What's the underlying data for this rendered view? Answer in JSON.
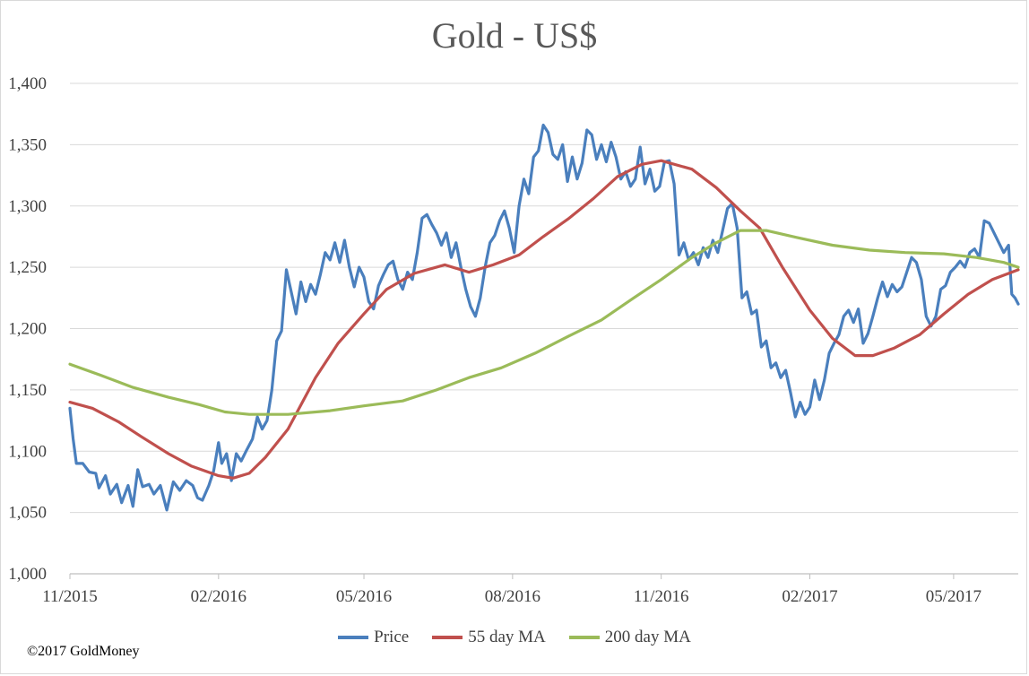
{
  "title": "Gold - US$",
  "copyright": "©2017 GoldMoney",
  "colors": {
    "price": "#4a7fbd",
    "ma55": "#c0504d",
    "ma200": "#9bbb59",
    "grid": "#d9d9d9",
    "axis": "#bfbfbf"
  },
  "chart_data": {
    "type": "line",
    "title": "Gold - US$",
    "xlabel": "",
    "ylabel": "",
    "ylim": [
      1000,
      1400
    ],
    "xlim": [
      "2015-11-01",
      "2017-06-10"
    ],
    "yticks": [
      "1,000",
      "1,050",
      "1,100",
      "1,150",
      "1,200",
      "1,250",
      "1,300",
      "1,350",
      "1,400"
    ],
    "xticks": [
      {
        "label": "11/2015",
        "date": "2015-11-01"
      },
      {
        "label": "02/2016",
        "date": "2016-02-01"
      },
      {
        "label": "05/2016",
        "date": "2016-05-01"
      },
      {
        "label": "08/2016",
        "date": "2016-08-01"
      },
      {
        "label": "11/2016",
        "date": "2016-11-01"
      },
      {
        "label": "02/2017",
        "date": "2017-02-01"
      },
      {
        "label": "05/2017",
        "date": "2017-05-01"
      }
    ],
    "grid": true,
    "legend_position": "bottom",
    "series": [
      {
        "name": "Price",
        "color": "#4a7fbd",
        "points": [
          [
            "2015-11-01",
            1135
          ],
          [
            "2015-11-03",
            1110
          ],
          [
            "2015-11-05",
            1090
          ],
          [
            "2015-11-09",
            1090
          ],
          [
            "2015-11-13",
            1083
          ],
          [
            "2015-11-17",
            1082
          ],
          [
            "2015-11-19",
            1070
          ],
          [
            "2015-11-23",
            1080
          ],
          [
            "2015-11-26",
            1065
          ],
          [
            "2015-11-30",
            1073
          ],
          [
            "2015-12-03",
            1058
          ],
          [
            "2015-12-07",
            1072
          ],
          [
            "2015-12-10",
            1055
          ],
          [
            "2015-12-13",
            1085
          ],
          [
            "2015-12-16",
            1071
          ],
          [
            "2015-12-20",
            1073
          ],
          [
            "2015-12-23",
            1065
          ],
          [
            "2015-12-27",
            1072
          ],
          [
            "2015-12-31",
            1052
          ],
          [
            "2016-01-04",
            1075
          ],
          [
            "2016-01-08",
            1068
          ],
          [
            "2016-01-12",
            1076
          ],
          [
            "2016-01-16",
            1072
          ],
          [
            "2016-01-19",
            1062
          ],
          [
            "2016-01-22",
            1060
          ],
          [
            "2016-01-26",
            1072
          ],
          [
            "2016-01-29",
            1084
          ],
          [
            "2016-02-01",
            1107
          ],
          [
            "2016-02-03",
            1090
          ],
          [
            "2016-02-06",
            1098
          ],
          [
            "2016-02-09",
            1076
          ],
          [
            "2016-02-12",
            1098
          ],
          [
            "2016-02-15",
            1092
          ],
          [
            "2016-02-18",
            1100
          ],
          [
            "2016-02-22",
            1110
          ],
          [
            "2016-02-25",
            1128
          ],
          [
            "2016-02-28",
            1118
          ],
          [
            "2016-03-02",
            1125
          ],
          [
            "2016-03-05",
            1150
          ],
          [
            "2016-03-08",
            1190
          ],
          [
            "2016-03-11",
            1198
          ],
          [
            "2016-03-14",
            1248
          ],
          [
            "2016-03-17",
            1230
          ],
          [
            "2016-03-20",
            1212
          ],
          [
            "2016-03-23",
            1238
          ],
          [
            "2016-03-26",
            1222
          ],
          [
            "2016-03-29",
            1236
          ],
          [
            "2016-04-01",
            1228
          ],
          [
            "2016-04-04",
            1244
          ],
          [
            "2016-04-07",
            1262
          ],
          [
            "2016-04-10",
            1256
          ],
          [
            "2016-04-13",
            1270
          ],
          [
            "2016-04-16",
            1254
          ],
          [
            "2016-04-19",
            1272
          ],
          [
            "2016-04-22",
            1250
          ],
          [
            "2016-04-25",
            1234
          ],
          [
            "2016-04-28",
            1250
          ],
          [
            "2016-05-01",
            1242
          ],
          [
            "2016-05-04",
            1222
          ],
          [
            "2016-05-07",
            1216
          ],
          [
            "2016-05-10",
            1235
          ],
          [
            "2016-05-13",
            1244
          ],
          [
            "2016-05-16",
            1252
          ],
          [
            "2016-05-19",
            1255
          ],
          [
            "2016-05-22",
            1240
          ],
          [
            "2016-05-25",
            1232
          ],
          [
            "2016-05-28",
            1246
          ],
          [
            "2016-05-31",
            1240
          ],
          [
            "2016-06-03",
            1262
          ],
          [
            "2016-06-06",
            1290
          ],
          [
            "2016-06-09",
            1293
          ],
          [
            "2016-06-12",
            1285
          ],
          [
            "2016-06-15",
            1278
          ],
          [
            "2016-06-18",
            1268
          ],
          [
            "2016-06-21",
            1278
          ],
          [
            "2016-06-24",
            1258
          ],
          [
            "2016-06-27",
            1270
          ],
          [
            "2016-06-30",
            1250
          ],
          [
            "2016-07-03",
            1232
          ],
          [
            "2016-07-06",
            1218
          ],
          [
            "2016-07-09",
            1210
          ],
          [
            "2016-07-12",
            1225
          ],
          [
            "2016-07-15",
            1250
          ],
          [
            "2016-07-18",
            1270
          ],
          [
            "2016-07-21",
            1276
          ],
          [
            "2016-07-24",
            1288
          ],
          [
            "2016-07-27",
            1296
          ],
          [
            "2016-07-30",
            1282
          ],
          [
            "2016-08-02",
            1262
          ],
          [
            "2016-08-05",
            1300
          ],
          [
            "2016-08-08",
            1322
          ],
          [
            "2016-08-11",
            1310
          ],
          [
            "2016-08-14",
            1340
          ],
          [
            "2016-08-17",
            1345
          ],
          [
            "2016-08-20",
            1366
          ],
          [
            "2016-08-23",
            1360
          ],
          [
            "2016-08-26",
            1342
          ],
          [
            "2016-08-29",
            1338
          ],
          [
            "2016-09-01",
            1350
          ],
          [
            "2016-09-04",
            1320
          ],
          [
            "2016-09-07",
            1340
          ],
          [
            "2016-09-10",
            1322
          ],
          [
            "2016-09-13",
            1335
          ],
          [
            "2016-09-16",
            1362
          ],
          [
            "2016-09-19",
            1358
          ],
          [
            "2016-09-22",
            1338
          ],
          [
            "2016-09-25",
            1350
          ],
          [
            "2016-09-28",
            1336
          ],
          [
            "2016-10-01",
            1352
          ],
          [
            "2016-10-04",
            1340
          ],
          [
            "2016-10-07",
            1322
          ],
          [
            "2016-10-10",
            1328
          ],
          [
            "2016-10-13",
            1316
          ],
          [
            "2016-10-16",
            1322
          ],
          [
            "2016-10-19",
            1348
          ],
          [
            "2016-10-22",
            1318
          ],
          [
            "2016-10-25",
            1330
          ],
          [
            "2016-10-28",
            1312
          ],
          [
            "2016-10-31",
            1316
          ],
          [
            "2016-11-03",
            1336
          ],
          [
            "2016-11-06",
            1337
          ],
          [
            "2016-11-09",
            1318
          ],
          [
            "2016-11-12",
            1260
          ],
          [
            "2016-11-15",
            1270
          ],
          [
            "2016-11-18",
            1256
          ],
          [
            "2016-11-21",
            1262
          ],
          [
            "2016-11-24",
            1252
          ],
          [
            "2016-11-27",
            1266
          ],
          [
            "2016-11-30",
            1258
          ],
          [
            "2016-12-03",
            1272
          ],
          [
            "2016-12-06",
            1262
          ],
          [
            "2016-12-09",
            1280
          ],
          [
            "2016-12-12",
            1298
          ],
          [
            "2016-12-15",
            1302
          ],
          [
            "2016-12-18",
            1282
          ],
          [
            "2016-12-21",
            1225
          ],
          [
            "2016-12-24",
            1230
          ],
          [
            "2016-12-27",
            1212
          ],
          [
            "2016-12-30",
            1215
          ],
          [
            "2017-01-02",
            1185
          ],
          [
            "2017-01-05",
            1190
          ],
          [
            "2017-01-08",
            1168
          ],
          [
            "2017-01-11",
            1172
          ],
          [
            "2017-01-14",
            1160
          ],
          [
            "2017-01-17",
            1166
          ],
          [
            "2017-01-20",
            1148
          ],
          [
            "2017-01-23",
            1128
          ],
          [
            "2017-01-26",
            1140
          ],
          [
            "2017-01-29",
            1130
          ],
          [
            "2017-02-01",
            1136
          ],
          [
            "2017-02-04",
            1158
          ],
          [
            "2017-02-07",
            1142
          ],
          [
            "2017-02-10",
            1158
          ],
          [
            "2017-02-13",
            1180
          ],
          [
            "2017-02-16",
            1188
          ],
          [
            "2017-02-19",
            1195
          ],
          [
            "2017-02-22",
            1210
          ],
          [
            "2017-02-25",
            1215
          ],
          [
            "2017-02-28",
            1205
          ],
          [
            "2017-03-03",
            1216
          ],
          [
            "2017-03-06",
            1188
          ],
          [
            "2017-03-09",
            1196
          ],
          [
            "2017-03-12",
            1210
          ],
          [
            "2017-03-15",
            1225
          ],
          [
            "2017-03-18",
            1238
          ],
          [
            "2017-03-21",
            1226
          ],
          [
            "2017-03-24",
            1236
          ],
          [
            "2017-03-27",
            1230
          ],
          [
            "2017-03-30",
            1234
          ],
          [
            "2017-04-02",
            1246
          ],
          [
            "2017-04-05",
            1258
          ],
          [
            "2017-04-08",
            1254
          ],
          [
            "2017-04-11",
            1240
          ],
          [
            "2017-04-14",
            1210
          ],
          [
            "2017-04-17",
            1202
          ],
          [
            "2017-04-20",
            1210
          ],
          [
            "2017-04-23",
            1232
          ],
          [
            "2017-04-26",
            1235
          ],
          [
            "2017-04-29",
            1246
          ],
          [
            "2017-05-02",
            1250
          ],
          [
            "2017-05-05",
            1255
          ],
          [
            "2017-05-08",
            1250
          ],
          [
            "2017-05-11",
            1262
          ],
          [
            "2017-05-14",
            1265
          ],
          [
            "2017-05-17",
            1258
          ],
          [
            "2017-05-20",
            1288
          ],
          [
            "2017-05-23",
            1286
          ],
          [
            "2017-05-26",
            1278
          ],
          [
            "2017-05-29",
            1270
          ],
          [
            "2017-06-01",
            1262
          ],
          [
            "2017-06-04",
            1268
          ],
          [
            "2017-06-06",
            1228
          ],
          [
            "2017-06-08",
            1225
          ],
          [
            "2017-06-10",
            1220
          ]
        ]
      },
      {
        "name": "55 day MA",
        "color": "#c0504d",
        "points": [
          [
            "2015-11-01",
            1140
          ],
          [
            "2015-11-15",
            1135
          ],
          [
            "2015-12-01",
            1124
          ],
          [
            "2015-12-15",
            1112
          ],
          [
            "2016-01-01",
            1098
          ],
          [
            "2016-01-15",
            1088
          ],
          [
            "2016-02-01",
            1080
          ],
          [
            "2016-02-10",
            1078
          ],
          [
            "2016-02-20",
            1082
          ],
          [
            "2016-03-01",
            1095
          ],
          [
            "2016-03-15",
            1118
          ],
          [
            "2016-04-01",
            1160
          ],
          [
            "2016-04-15",
            1188
          ],
          [
            "2016-05-01",
            1212
          ],
          [
            "2016-05-15",
            1232
          ],
          [
            "2016-06-01",
            1245
          ],
          [
            "2016-06-20",
            1252
          ],
          [
            "2016-07-05",
            1246
          ],
          [
            "2016-07-20",
            1252
          ],
          [
            "2016-08-05",
            1260
          ],
          [
            "2016-08-20",
            1275
          ],
          [
            "2016-09-05",
            1290
          ],
          [
            "2016-09-20",
            1306
          ],
          [
            "2016-10-05",
            1324
          ],
          [
            "2016-10-20",
            1334
          ],
          [
            "2016-11-01",
            1337
          ],
          [
            "2016-11-20",
            1330
          ],
          [
            "2016-12-05",
            1315
          ],
          [
            "2016-12-20",
            1296
          ],
          [
            "2017-01-01",
            1282
          ],
          [
            "2017-01-15",
            1250
          ],
          [
            "2017-02-01",
            1215
          ],
          [
            "2017-02-15",
            1192
          ],
          [
            "2017-03-01",
            1178
          ],
          [
            "2017-03-12",
            1178
          ],
          [
            "2017-03-25",
            1184
          ],
          [
            "2017-04-10",
            1195
          ],
          [
            "2017-04-25",
            1212
          ],
          [
            "2017-05-10",
            1228
          ],
          [
            "2017-05-25",
            1240
          ],
          [
            "2017-06-10",
            1248
          ]
        ]
      },
      {
        "name": "200 day MA",
        "color": "#9bbb59",
        "points": [
          [
            "2015-11-01",
            1171
          ],
          [
            "2015-11-20",
            1162
          ],
          [
            "2015-12-10",
            1152
          ],
          [
            "2016-01-01",
            1144
          ],
          [
            "2016-01-20",
            1138
          ],
          [
            "2016-02-05",
            1132
          ],
          [
            "2016-02-20",
            1130
          ],
          [
            "2016-03-15",
            1130
          ],
          [
            "2016-04-10",
            1133
          ],
          [
            "2016-05-01",
            1137
          ],
          [
            "2016-05-25",
            1141
          ],
          [
            "2016-06-15",
            1150
          ],
          [
            "2016-07-05",
            1160
          ],
          [
            "2016-07-25",
            1168
          ],
          [
            "2016-08-15",
            1180
          ],
          [
            "2016-09-05",
            1194
          ],
          [
            "2016-09-25",
            1207
          ],
          [
            "2016-10-15",
            1225
          ],
          [
            "2016-11-01",
            1240
          ],
          [
            "2016-11-20",
            1258
          ],
          [
            "2016-12-05",
            1270
          ],
          [
            "2016-12-20",
            1280
          ],
          [
            "2017-01-05",
            1280
          ],
          [
            "2017-01-25",
            1274
          ],
          [
            "2017-02-15",
            1268
          ],
          [
            "2017-03-10",
            1264
          ],
          [
            "2017-04-01",
            1262
          ],
          [
            "2017-04-25",
            1261
          ],
          [
            "2017-05-15",
            1258
          ],
          [
            "2017-06-01",
            1254
          ],
          [
            "2017-06-10",
            1250
          ]
        ]
      }
    ]
  },
  "legend": [
    {
      "label": "Price",
      "color": "#4a7fbd"
    },
    {
      "label": "55 day MA",
      "color": "#c0504d"
    },
    {
      "label": "200 day MA",
      "color": "#9bbb59"
    }
  ]
}
